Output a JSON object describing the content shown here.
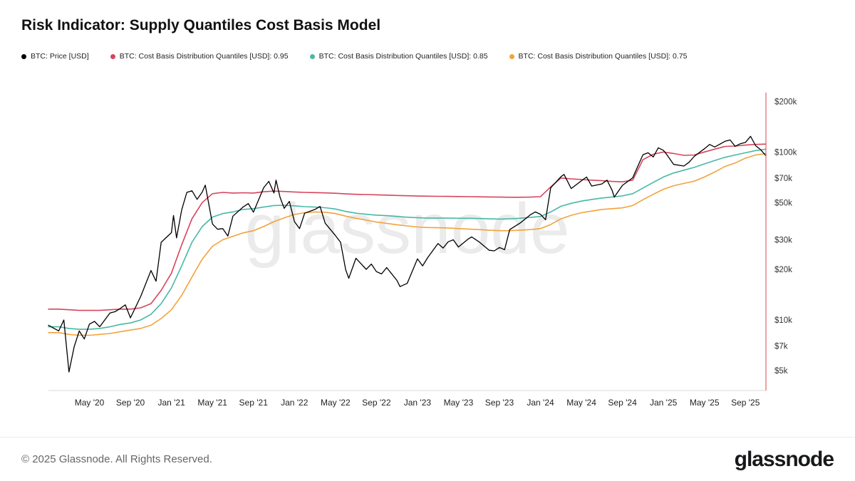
{
  "page": {
    "title": "Risk Indicator: Supply Quantiles Cost Basis Model",
    "watermark": "glassnode",
    "footer": {
      "copyright": "© 2025 Glassnode. All Rights Reserved.",
      "brand": "glassnode"
    }
  },
  "legend": [
    {
      "label": "BTC: Price [USD]",
      "color": "#000000"
    },
    {
      "label": "BTC: Cost Basis Distribution Quantiles [USD]: 0.95",
      "color": "#d6455d"
    },
    {
      "label": "BTC: Cost Basis Distribution Quantiles [USD]: 0.85",
      "color": "#49b8a5"
    },
    {
      "label": "BTC: Cost Basis Distribution Quantiles [USD]: 0.75",
      "color": "#f2a33c"
    }
  ],
  "chart_data": {
    "type": "line",
    "title": "Risk Indicator: Supply Quantiles Cost Basis Model",
    "x_unit": "months since 2020-01",
    "y_scale": "log",
    "ylim": [
      3800,
      215000
    ],
    "grid": false,
    "legend_position": "top",
    "y_ticks": [
      {
        "v": 5000,
        "label": "$5k"
      },
      {
        "v": 7000,
        "label": "$7k"
      },
      {
        "v": 10000,
        "label": "$10k"
      },
      {
        "v": 20000,
        "label": "$20k"
      },
      {
        "v": 30000,
        "label": "$30k"
      },
      {
        "v": 50000,
        "label": "$50k"
      },
      {
        "v": 70000,
        "label": "$70k"
      },
      {
        "v": 100000,
        "label": "$100k"
      },
      {
        "v": 200000,
        "label": "$200k"
      }
    ],
    "x_ticks": [
      {
        "m": 4,
        "label": "May '20"
      },
      {
        "m": 8,
        "label": "Sep '20"
      },
      {
        "m": 12,
        "label": "Jan '21"
      },
      {
        "m": 16,
        "label": "May '21"
      },
      {
        "m": 20,
        "label": "Sep '21"
      },
      {
        "m": 24,
        "label": "Jan '22"
      },
      {
        "m": 28,
        "label": "May '22"
      },
      {
        "m": 32,
        "label": "Sep '22"
      },
      {
        "m": 36,
        "label": "Jan '23"
      },
      {
        "m": 40,
        "label": "May '23"
      },
      {
        "m": 44,
        "label": "Sep '23"
      },
      {
        "m": 48,
        "label": "Jan '24"
      },
      {
        "m": 52,
        "label": "May '24"
      },
      {
        "m": 56,
        "label": "Sep '24"
      },
      {
        "m": 60,
        "label": "Jan '25"
      },
      {
        "m": 64,
        "label": "May '25"
      },
      {
        "m": 68,
        "label": "Sep '25"
      }
    ],
    "marker_line": {
      "m": 70,
      "color": "#e06666"
    },
    "series": [
      {
        "name": "BTC: Cost Basis Distribution Quantiles [USD]: 0.75",
        "color": "#f2a33c",
        "width": 1.6,
        "values": [
          8400,
          8400,
          8200,
          8100,
          8100,
          8200,
          8300,
          8500,
          8700,
          8900,
          9300,
          10200,
          11500,
          14000,
          18000,
          23000,
          27500,
          30000,
          31500,
          33000,
          34000,
          36000,
          38500,
          40500,
          42500,
          43500,
          44000,
          43800,
          43000,
          41500,
          40300,
          39300,
          38300,
          37600,
          36900,
          36300,
          35800,
          35500,
          35400,
          35300,
          35000,
          34800,
          34500,
          34200,
          34000,
          34000,
          34200,
          34500,
          35000,
          37000,
          40000,
          42000,
          43500,
          44500,
          45500,
          46000,
          46500,
          48000,
          52000,
          56000,
          60000,
          63000,
          65000,
          67000,
          71000,
          76000,
          82000,
          86000,
          92000,
          96000,
          98000
        ]
      },
      {
        "name": "BTC: Cost Basis Distribution Quantiles [USD]: 0.85",
        "color": "#49b8a5",
        "width": 1.6,
        "values": [
          9100,
          9100,
          8900,
          8800,
          8800,
          8900,
          9100,
          9400,
          9600,
          10000,
          10800,
          12500,
          15500,
          21000,
          29000,
          36000,
          41000,
          43000,
          44000,
          45500,
          46000,
          47000,
          48000,
          48200,
          47800,
          47300,
          47000,
          46600,
          45800,
          44300,
          43200,
          42600,
          42100,
          41800,
          41300,
          40900,
          40600,
          40400,
          40400,
          40400,
          40300,
          40300,
          40200,
          40000,
          39900,
          40000,
          40300,
          40800,
          41300,
          44000,
          47500,
          49500,
          51000,
          52200,
          53200,
          54000,
          54800,
          56500,
          61000,
          66000,
          71000,
          75000,
          78000,
          81000,
          85000,
          89000,
          93000,
          96000,
          99000,
          102000,
          104000
        ]
      },
      {
        "name": "BTC: Cost Basis Distribution Quantiles [USD]: 0.95",
        "color": "#d6455d",
        "width": 1.6,
        "values": [
          11600,
          11600,
          11500,
          11400,
          11400,
          11400,
          11500,
          11600,
          11600,
          11800,
          12500,
          15000,
          19000,
          28000,
          40000,
          50000,
          56500,
          57500,
          57000,
          57200,
          57000,
          58000,
          58500,
          58200,
          57800,
          57500,
          57300,
          57100,
          56800,
          56300,
          56000,
          55800,
          55600,
          55400,
          55100,
          54900,
          54700,
          54600,
          54500,
          54400,
          54300,
          54200,
          54100,
          54000,
          53900,
          53800,
          53800,
          53900,
          54200,
          62000,
          70000,
          69200,
          68600,
          68000,
          67500,
          66800,
          66400,
          68000,
          90000,
          97000,
          100000,
          98000,
          95500,
          96000,
          100000,
          104000,
          108000,
          108500,
          110000,
          111000,
          111500
        ]
      },
      {
        "name": "BTC: Price [USD]",
        "color": "#000000",
        "width": 1.3,
        "x": [
          0,
          1,
          1.5,
          2,
          2.5,
          3,
          3.5,
          4,
          4.5,
          5,
          6,
          6.5,
          7,
          7.5,
          8,
          9,
          10,
          10.5,
          11,
          12,
          12.2,
          12.5,
          13,
          13.5,
          14,
          14.5,
          15,
          15.3,
          16,
          16.5,
          17,
          17.5,
          18,
          19,
          19.5,
          20,
          21,
          21.5,
          22,
          22.2,
          22.6,
          23,
          23.5,
          24,
          24.5,
          25,
          26,
          26.5,
          27,
          28,
          28.5,
          29,
          29.3,
          30,
          31,
          31.5,
          32,
          32.5,
          33,
          34,
          34.3,
          35,
          36,
          36.5,
          37,
          38,
          38.5,
          39,
          39.5,
          40,
          41,
          41.3,
          42,
          43,
          43.5,
          44,
          44.5,
          45,
          46,
          47,
          47.5,
          48,
          48.5,
          49,
          50,
          50.3,
          51,
          52,
          52.5,
          53,
          54,
          54.5,
          55,
          55.2,
          56,
          57,
          58,
          58.5,
          59,
          59.5,
          60,
          60.3,
          61,
          62,
          62.5,
          63,
          64,
          64.5,
          65,
          66,
          66.5,
          67,
          67.5,
          68,
          68.5,
          69,
          69.5,
          70
        ],
        "values": [
          9300,
          8600,
          10000,
          4900,
          6900,
          8600,
          7700,
          9450,
          9800,
          9100,
          11000,
          11200,
          11700,
          12300,
          10300,
          13800,
          19700,
          17000,
          29000,
          33100,
          41900,
          30800,
          45200,
          57500,
          58800,
          52300,
          57700,
          63500,
          37300,
          34700,
          35000,
          31600,
          41500,
          47100,
          49300,
          43800,
          61300,
          66900,
          57000,
          68000,
          53700,
          46200,
          50800,
          38500,
          35000,
          43200,
          45500,
          47400,
          37700,
          31800,
          29000,
          19900,
          17700,
          23300,
          20000,
          21500,
          19400,
          18800,
          20500,
          17200,
          15800,
          16500,
          23100,
          21000,
          23500,
          28500,
          26800,
          29200,
          30000,
          27200,
          30500,
          31200,
          29200,
          26000,
          25800,
          27000,
          26200,
          34500,
          37700,
          42200,
          44000,
          42600,
          39500,
          61200,
          71300,
          73500,
          60600,
          67500,
          71000,
          62700,
          64600,
          68000,
          59000,
          53900,
          63300,
          70200,
          96400,
          99000,
          93400,
          106000,
          102400,
          97000,
          84400,
          82500,
          86900,
          94200,
          104600,
          111000,
          107100,
          115800,
          118000,
          108200,
          112000,
          114000,
          124000,
          109000,
          103000,
          95000
        ]
      }
    ]
  }
}
